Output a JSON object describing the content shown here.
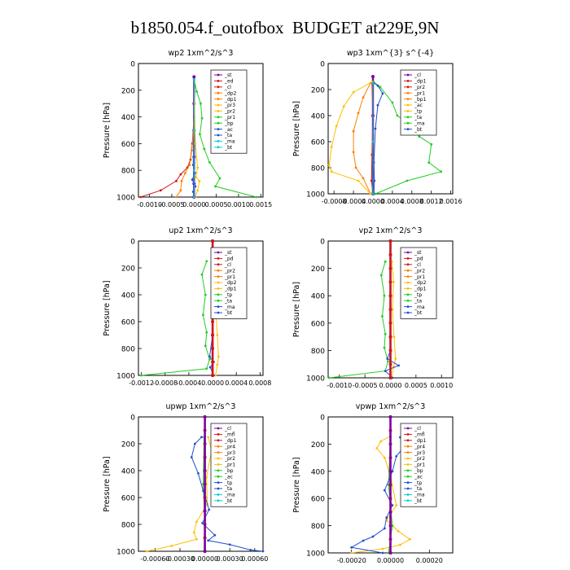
{
  "figure": {
    "title": "b1850.054.f_outofbox  BUDGET at229E,9N"
  },
  "colors": {
    "axes": "#000000",
    "legend_box": "#000000"
  },
  "chart_data": [
    {
      "type": "line",
      "title": "wp2   1xm^2/s^3",
      "ylabel": "Pressure [hPa]",
      "ylim": [
        1000,
        0
      ],
      "yticks": [
        "0",
        "200",
        "400",
        "600",
        "800",
        "1000"
      ],
      "xlim": [
        -0.00125,
        0.00155
      ],
      "xticks": [
        -0.001,
        -0.0005,
        0.0,
        0.0005,
        0.001,
        0.0015
      ],
      "xtick_labels": [
        "-0.0010",
        "-0.0005",
        "0.0000",
        "0.0005",
        "0.0010",
        "0.0015"
      ],
      "legend": [
        "_st",
        "_ed",
        "_cl",
        "_dp2",
        "_dp1",
        "_pr3",
        "_pr2",
        "_pr1",
        "_bp",
        "_ac",
        "_ta",
        "_ma",
        "_bt"
      ],
      "legend_position": "top-right",
      "series": [
        {
          "color": "#7a00aa",
          "x": [
            0,
            0,
            0,
            0,
            0,
            0
          ],
          "y": [
            100,
            300,
            500,
            700,
            900,
            1000
          ]
        },
        {
          "color": "#d01818",
          "x": [
            0,
            0,
            -4e-05,
            -8e-05,
            -0.00015,
            -0.0003,
            -0.0004,
            -0.00075,
            -0.0012
          ],
          "y": [
            120,
            400,
            600,
            720,
            780,
            830,
            880,
            950,
            1000
          ]
        },
        {
          "color": "#ff7f00",
          "x": [
            0,
            0,
            -5e-05,
            -0.0001,
            -0.0002,
            -0.00028,
            -0.0003,
            -0.0004
          ],
          "y": [
            120,
            450,
            650,
            760,
            820,
            880,
            950,
            1000
          ]
        },
        {
          "color": "#ffbf00",
          "x": [
            0,
            1e-05,
            3e-05,
            8e-05,
            4e-05,
            0.00012,
            8e-05,
            3e-05
          ],
          "y": [
            120,
            300,
            600,
            780,
            850,
            880,
            950,
            1000
          ]
        },
        {
          "color": "#22cc22",
          "x": [
            0,
            6e-05,
            0.00015,
            0.00018,
            0.00013,
            0.00023,
            0.00035,
            0.00058,
            0.00048,
            0.0014
          ],
          "y": [
            120,
            210,
            300,
            410,
            530,
            640,
            740,
            860,
            920,
            1000
          ]
        },
        {
          "color": "#2050d0",
          "x": [
            0,
            0,
            -2e-05,
            2e-05,
            -4e-05,
            3e-05,
            -2e-05,
            1e-05
          ],
          "y": [
            120,
            500,
            760,
            820,
            870,
            920,
            960,
            1000
          ]
        },
        {
          "color": "#00cfcf",
          "x": [
            0,
            0,
            0,
            0
          ],
          "y": [
            120,
            500,
            800,
            1000
          ]
        }
      ]
    },
    {
      "type": "line",
      "title": "wp3   1xm^{3} s^{-4}",
      "ylabel": "Pressure [hPa]",
      "ylim": [
        1000,
        0
      ],
      "yticks": [
        "0",
        "200",
        "400",
        "600",
        "800",
        "1000"
      ],
      "xlim": [
        -0.00092,
        0.00164
      ],
      "xticks": [
        -0.0008,
        -0.0004,
        0.0,
        0.0004,
        0.0008,
        0.0012,
        0.0016
      ],
      "xtick_labels": [
        "-0.0008",
        "-0.0004",
        "0.0000",
        "0.0004",
        "0.0008",
        "0.0012",
        "0.0016"
      ],
      "legend": [
        "_cl",
        "_dp1",
        "_pr2",
        "_pr1",
        "_bp1",
        "_ac",
        "_tp",
        "_ta",
        "_ma",
        "_bt"
      ],
      "legend_position": "top-right",
      "series": [
        {
          "color": "#7a00aa",
          "x": [
            0,
            0,
            0,
            0
          ],
          "y": [
            100,
            400,
            700,
            1000
          ]
        },
        {
          "color": "#d01818",
          "x": [
            -2e-05,
            0,
            -2e-05,
            -3e-05,
            0
          ],
          "y": [
            150,
            400,
            700,
            900,
            1000
          ]
        },
        {
          "color": "#ff7f00",
          "x": [
            -5e-05,
            -0.0002,
            -0.0003,
            -0.0004,
            -0.0004,
            -0.00035,
            -0.0002,
            -5e-05
          ],
          "y": [
            150,
            260,
            380,
            520,
            680,
            800,
            880,
            1000
          ]
        },
        {
          "color": "#ffbf00",
          "x": [
            -1e-05,
            -0.0004,
            -0.0006,
            -0.00075,
            -0.00085,
            -0.0009,
            -0.00085,
            -0.0003,
            -5e-05
          ],
          "y": [
            140,
            220,
            330,
            480,
            640,
            780,
            830,
            900,
            1000
          ]
        },
        {
          "color": "#22cc22",
          "x": [
            1e-05,
            0.00015,
            0.0004,
            0.0005,
            0.00075,
            0.00095,
            0.0012,
            0.00115,
            0.0014,
            0.0007,
            5e-05
          ],
          "y": [
            140,
            180,
            300,
            400,
            470,
            560,
            620,
            760,
            830,
            900,
            1000
          ]
        },
        {
          "color": "#2050d0",
          "x": [
            2e-05,
            0.0001,
            0.0002,
            0.0001,
            5e-05,
            2e-05,
            3e-05,
            2e-05
          ],
          "y": [
            150,
            170,
            230,
            320,
            500,
            760,
            900,
            1000
          ]
        },
        {
          "color": "#00cfcf",
          "x": [
            0,
            0,
            0
          ],
          "y": [
            150,
            600,
            1000
          ]
        }
      ]
    },
    {
      "type": "line",
      "title": "up2   1xm^2/s^3",
      "ylabel": "Pressure [hPa]",
      "ylim": [
        1000,
        0
      ],
      "yticks": [
        "0",
        "200",
        "400",
        "600",
        "800",
        "1000"
      ],
      "xlim": [
        -0.00125,
        0.00085
      ],
      "xticks": [
        -0.0012,
        -0.0008,
        -0.0004,
        0.0,
        0.0004,
        0.0008
      ],
      "xtick_labels": [
        "-0.0012",
        "-0.0008",
        "-0.0004",
        "0.0000",
        "0.0004",
        "0.0008"
      ],
      "legend": [
        "_st",
        "_pd",
        "_cl",
        "_pr2",
        "_pr1",
        "_dp2",
        "_dp1",
        "_tp",
        "_ta",
        "_ma",
        "_bt"
      ],
      "legend_position": "top-right",
      "series": [
        {
          "color": "#7a00aa",
          "x": [
            0,
            0,
            0,
            0
          ],
          "y": [
            0,
            400,
            700,
            1000
          ]
        },
        {
          "color": "#ffbf00",
          "x": [
            5e-05,
            8e-05,
            5e-05,
            8e-05,
            0.0001,
            8e-05,
            5e-05
          ],
          "y": [
            150,
            300,
            500,
            700,
            860,
            920,
            1000
          ]
        },
        {
          "color": "#22cc22",
          "x": [
            -0.0001,
            -0.00018,
            -0.00012,
            -0.00016,
            -0.0001,
            -0.00012,
            -5e-05,
            -0.0001,
            -0.0012
          ],
          "y": [
            150,
            250,
            400,
            550,
            680,
            780,
            880,
            950,
            1000
          ]
        },
        {
          "color": "#2050d0",
          "x": [
            0,
            0,
            -5e-05,
            2e-05,
            -4e-05,
            2e-05
          ],
          "y": [
            100,
            700,
            860,
            900,
            940,
            1000
          ]
        },
        {
          "color": "#00cfcf",
          "x": [
            0,
            0,
            0
          ],
          "y": [
            100,
            500,
            1000
          ]
        },
        {
          "color": "#d01818",
          "x": [
            0,
            0,
            0,
            0,
            0,
            0,
            0,
            0,
            0,
            0,
            0
          ],
          "y": [
            0,
            100,
            200,
            300,
            400,
            500,
            600,
            700,
            800,
            900,
            1000
          ]
        }
      ]
    },
    {
      "type": "line",
      "title": "vp2   1xm^2/s^3",
      "ylabel": "Pressure [hPa]",
      "ylim": [
        1000,
        0
      ],
      "yticks": [
        "0",
        "200",
        "400",
        "600",
        "800",
        "1000"
      ],
      "xlim": [
        -0.00122,
        0.00122
      ],
      "xticks": [
        -0.001,
        -0.0005,
        0.0,
        0.0005,
        0.001
      ],
      "xtick_labels": [
        "-0.0010",
        "-0.0005",
        "0.0000",
        "0.0005",
        "0.0010"
      ],
      "legend": [
        "_st",
        "_pd",
        "_cl",
        "_pr2",
        "_pr1",
        "_dp2",
        "_dp1",
        "_tp",
        "_ta",
        "_ma",
        "_bt"
      ],
      "legend_position": "top-right",
      "series": [
        {
          "color": "#7a00aa",
          "x": [
            0,
            0,
            0,
            0
          ],
          "y": [
            0,
            400,
            700,
            1000
          ]
        },
        {
          "color": "#ffbf00",
          "x": [
            3e-05,
            6e-05,
            4e-05,
            7e-05,
            0.0001,
            6e-05,
            3e-05
          ],
          "y": [
            150,
            300,
            500,
            700,
            860,
            920,
            1000
          ]
        },
        {
          "color": "#22cc22",
          "x": [
            -0.0001,
            -0.00018,
            -0.00012,
            -0.00016,
            -0.0001,
            -0.00012,
            -5e-05,
            -0.0001,
            -0.0012
          ],
          "y": [
            150,
            250,
            400,
            550,
            680,
            780,
            880,
            950,
            1000
          ]
        },
        {
          "color": "#2050d0",
          "x": [
            0,
            0,
            -6e-05,
            0.00016,
            -0.0001,
            4e-05
          ],
          "y": [
            100,
            800,
            860,
            910,
            950,
            1000
          ]
        },
        {
          "color": "#00cfcf",
          "x": [
            0,
            0,
            0
          ],
          "y": [
            100,
            500,
            1000
          ]
        },
        {
          "color": "#d01818",
          "x": [
            0,
            0,
            0,
            0,
            0,
            0,
            0,
            0,
            0,
            0,
            0
          ],
          "y": [
            0,
            100,
            200,
            300,
            400,
            500,
            600,
            700,
            800,
            900,
            1000
          ]
        }
      ]
    },
    {
      "type": "line",
      "title": "upwp   1xm^2/s^3",
      "ylabel": "Pressure [hPa]",
      "ylim": [
        1000,
        0
      ],
      "yticks": [
        "0",
        "200",
        "400",
        "600",
        "800",
        "1000"
      ],
      "xlim": [
        -0.0008,
        0.0007
      ],
      "xticks": [
        -0.0006,
        -0.0003,
        0.0,
        0.0003,
        0.0006
      ],
      "xtick_labels": [
        "-0.00060",
        "-0.00030",
        "0.00000",
        "0.00030",
        "0.00060"
      ],
      "legend": [
        "_cl",
        "_mfl",
        "_dp1",
        "_pr4",
        "_pr3",
        "_pr2",
        "_pr1",
        "_bp",
        "_ac",
        "_tp",
        "_ta",
        "_ma",
        "_bt"
      ],
      "legend_position": "top-right",
      "series": [
        {
          "color": "#ffbf00",
          "x": [
            4e-05,
            8e-05,
            2e-05,
            3e-05,
            -0.0001,
            -0.00013,
            -0.0001,
            -0.0004,
            -0.0007
          ],
          "y": [
            150,
            250,
            450,
            650,
            780,
            860,
            910,
            960,
            1000
          ]
        },
        {
          "color": "#22cc22",
          "x": [
            -1e-05,
            -2e-05,
            0,
            -1e-05
          ],
          "y": [
            150,
            500,
            800,
            1000
          ]
        },
        {
          "color": "#2050d0",
          "x": [
            -4e-05,
            -0.00012,
            -0.00016,
            -8e-05,
            -2e-05,
            5e-05,
            -3e-05,
            0.00012,
            4e-05,
            0.0003,
            0.00055,
            0.0007
          ],
          "y": [
            150,
            200,
            300,
            420,
            550,
            690,
            790,
            880,
            920,
            950,
            990,
            1000
          ]
        },
        {
          "color": "#00cfcf",
          "x": [
            0,
            0,
            0
          ],
          "y": [
            150,
            500,
            1000
          ]
        },
        {
          "color": "#d01818",
          "x": [
            0,
            0,
            0,
            0,
            0,
            0,
            0,
            0,
            0,
            0,
            0
          ],
          "y": [
            0,
            100,
            200,
            300,
            400,
            500,
            600,
            700,
            800,
            900,
            1000
          ]
        },
        {
          "color": "#7a00aa",
          "x": [
            0,
            0,
            0,
            0
          ],
          "y": [
            0,
            400,
            700,
            1000
          ]
        }
      ]
    },
    {
      "type": "line",
      "title": "vpwp   1xm^2/s^3",
      "ylabel": "Pressure [hPa]",
      "ylim": [
        1000,
        0
      ],
      "yticks": [
        "0",
        "200",
        "400",
        "600",
        "800",
        "1000"
      ],
      "xlim": [
        -0.00032,
        0.00032
      ],
      "xticks": [
        -0.0002,
        0.0,
        0.0002
      ],
      "xtick_labels": [
        "-0.00020",
        "0.00000",
        "0.00020"
      ],
      "legend": [
        "_cl",
        "_mfl",
        "_dp1",
        "_pr4",
        "_pr3",
        "_pr2",
        "_pr1",
        "_bp",
        "_ac",
        "_tp",
        "_ta",
        "_ma",
        "_bt"
      ],
      "legend_position": "top-right",
      "series": [
        {
          "color": "#ffbf00",
          "x": [
            0,
            -5e-05,
            -7e-05,
            -3e-05,
            0,
            3e-05,
            -2e-05,
            4e-05,
            0.0001,
            5e-05,
            -4e-05,
            -0.0002
          ],
          "y": [
            140,
            180,
            230,
            300,
            430,
            650,
            760,
            840,
            900,
            940,
            970,
            1000
          ]
        },
        {
          "color": "#22cc22",
          "x": [
            0,
            -1e-05,
            1e-05,
            -1e-05
          ],
          "y": [
            150,
            500,
            800,
            1000
          ]
        },
        {
          "color": "#2050d0",
          "x": [
            5e-05,
            7e-05,
            3e-05,
            1e-05,
            -3e-05,
            1e-05,
            -2e-05,
            -3e-05,
            -9e-05,
            -0.00014,
            -0.0002,
            -4e-05
          ],
          "y": [
            150,
            220,
            290,
            400,
            540,
            650,
            740,
            820,
            880,
            910,
            960,
            1000
          ]
        },
        {
          "color": "#00cfcf",
          "x": [
            0,
            0,
            0
          ],
          "y": [
            150,
            500,
            1000
          ]
        },
        {
          "color": "#d01818",
          "x": [
            0,
            0,
            0,
            0,
            0,
            0,
            0,
            0,
            0,
            0,
            0
          ],
          "y": [
            0,
            100,
            200,
            300,
            400,
            500,
            600,
            700,
            800,
            900,
            1000
          ]
        },
        {
          "color": "#7a00aa",
          "x": [
            0,
            0,
            0,
            0
          ],
          "y": [
            0,
            400,
            700,
            1000
          ]
        }
      ]
    }
  ]
}
